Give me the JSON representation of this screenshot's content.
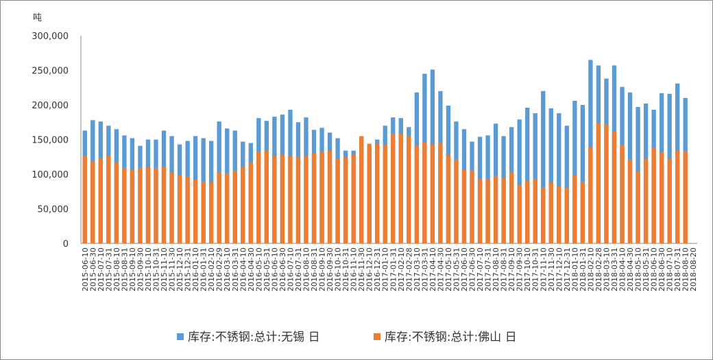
{
  "chart_data": {
    "type": "bar",
    "y_unit": "吨",
    "ylim": [
      0,
      300000
    ],
    "y_ticks": [
      "300,000",
      "250,000",
      "200,000",
      "150,000",
      "100,000",
      "50,000",
      "0"
    ],
    "y_tick_values": [
      300000,
      250000,
      200000,
      150000,
      100000,
      50000,
      0
    ],
    "grid": false,
    "legend_position": "bottom",
    "categories": [
      "2015-06-10",
      "2015-06-30",
      "2015-07-10",
      "2015-07-31",
      "2015-08-10",
      "2015-08-31",
      "2015-09-10",
      "2015-09-30",
      "2015-10-10",
      "2015-10-31",
      "2015-11-10",
      "2015-11-30",
      "2015-12-10",
      "2015-12-31",
      "2016-01-10",
      "2016-01-31",
      "2016-02-10",
      "2016-02-29",
      "2016-03-10",
      "2016-03-31",
      "2016-04-10",
      "2016-04-30",
      "2016-05-10",
      "2016-05-31",
      "2016-06-10",
      "2016-06-30",
      "2016-07-10",
      "2016-07-31",
      "2016-08-10",
      "2016-08-31",
      "2016-09-10",
      "2016-09-30",
      "2016-10-10",
      "2016-10-31",
      "2016-11-10",
      "2016-11-30",
      "2016-12-10",
      "2016-12-31",
      "2017-01-10",
      "2017-01-31",
      "2017-02-10",
      "2017-02-28",
      "2017-03-10",
      "2017-03-31",
      "2017-04-10",
      "2017-04-30",
      "2017-05-10",
      "2017-05-31",
      "2017-06-10",
      "2017-06-30",
      "2017-07-10",
      "2017-07-31",
      "2017-08-10",
      "2017-08-31",
      "2017-09-10",
      "2017-09-30",
      "2017-10-10",
      "2017-10-31",
      "2017-11-10",
      "2017-11-30",
      "2017-12-10",
      "2017-12-31",
      "2018-01-10",
      "2018-01-31",
      "2018-02-10",
      "2018-02-28",
      "2018-03-10",
      "2018-03-31",
      "2018-04-10",
      "2018-04-30",
      "2018-05-10",
      "2018-05-31",
      "2018-06-10",
      "2018-06-30",
      "2018-07-10",
      "2018-07-31",
      "2018-08-10",
      "2018-08-20"
    ],
    "series": [
      {
        "name": "库存:不锈钢:总计:无锡 日",
        "color": "#5b9bd5",
        "values": [
          163000,
          178000,
          176000,
          170000,
          165000,
          156000,
          152000,
          141000,
          150000,
          150000,
          163000,
          155000,
          143000,
          148000,
          155000,
          152000,
          148000,
          176000,
          166000,
          163000,
          147000,
          145000,
          181000,
          177000,
          183000,
          186000,
          193000,
          175000,
          182000,
          164000,
          167000,
          160000,
          152000,
          134000,
          134000,
          152000,
          140000,
          150000,
          170000,
          182000,
          181000,
          168000,
          218000,
          245000,
          251000,
          220000,
          199000,
          176000,
          165000,
          147000,
          154000,
          156000,
          173000,
          155000,
          168000,
          179000,
          196000,
          188000,
          220000,
          195000,
          188000,
          170000,
          206000,
          200000,
          265000,
          257000,
          238000,
          257000,
          226000,
          218000,
          197000,
          202000,
          193000,
          217000,
          216000,
          231000,
          210000,
          0
        ]
      },
      {
        "name": "库存:不锈钢:总计:佛山 日",
        "color": "#ed7d31",
        "values": [
          126000,
          119000,
          123000,
          127000,
          117000,
          109000,
          107000,
          109000,
          110000,
          109000,
          111000,
          102000,
          98000,
          96000,
          92000,
          89000,
          88000,
          103000,
          101000,
          105000,
          110000,
          116000,
          132000,
          134000,
          126000,
          128000,
          126000,
          125000,
          126000,
          130000,
          132000,
          134000,
          122000,
          124000,
          128000,
          155000,
          144000,
          144000,
          142000,
          158000,
          159000,
          155000,
          141000,
          146000,
          143000,
          145000,
          128000,
          121000,
          107000,
          105000,
          93000,
          92000,
          97000,
          95000,
          103000,
          84000,
          91000,
          93000,
          81000,
          88000,
          82000,
          80000,
          98000,
          89000,
          139000,
          174000,
          172000,
          162000,
          142000,
          121000,
          104000,
          123000,
          138000,
          132000,
          122000,
          134000,
          133000,
          0
        ]
      }
    ]
  }
}
